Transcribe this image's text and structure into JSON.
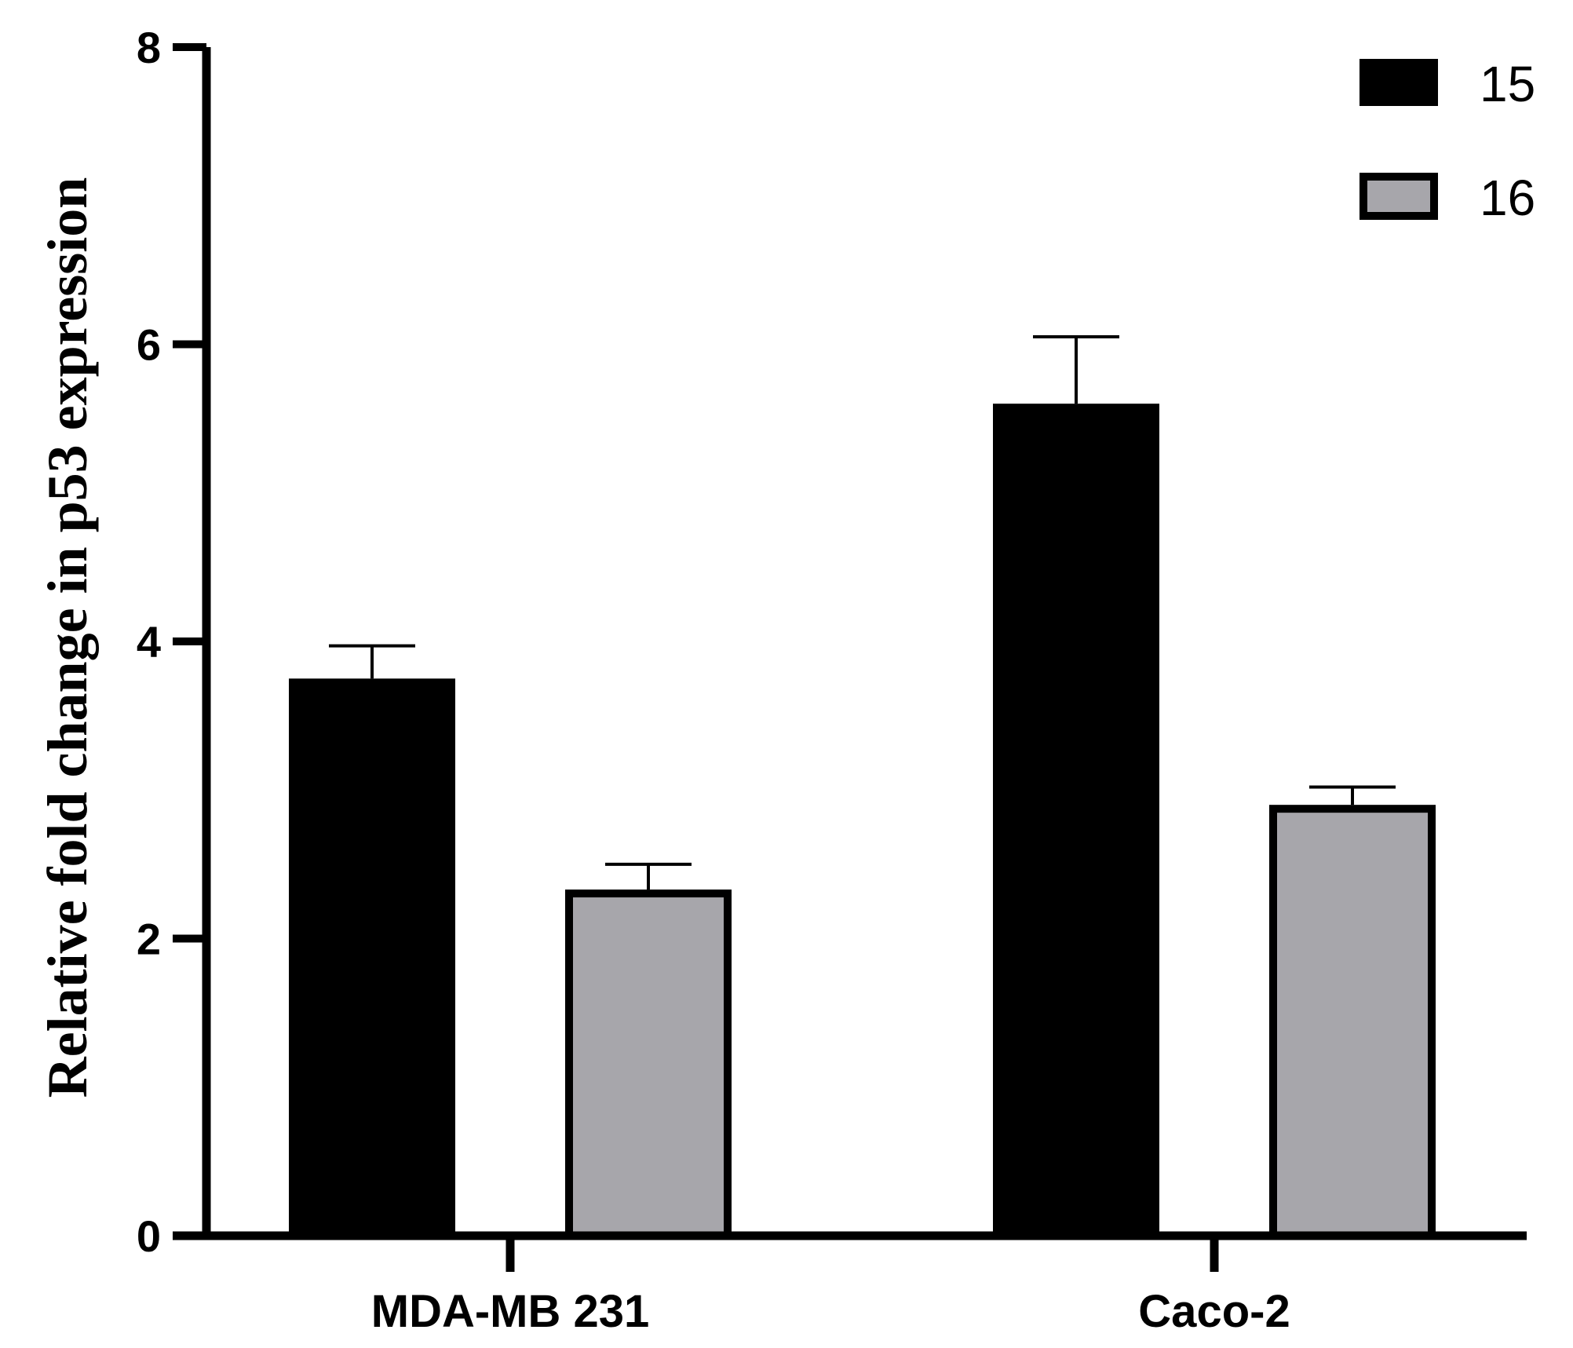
{
  "chart_data": {
    "type": "bar",
    "title": "",
    "xlabel": "",
    "ylabel": "Relative fold change in p53 expression",
    "ylim": [
      0,
      8
    ],
    "yticks": [
      0,
      2,
      4,
      6,
      8
    ],
    "categories": [
      "MDA-MB 231",
      "Caco-2"
    ],
    "series": [
      {
        "name": "15",
        "values": [
          3.75,
          5.6
        ],
        "errors": [
          0.22,
          0.45
        ],
        "color": "#000000"
      },
      {
        "name": "16",
        "values": [
          2.33,
          2.9
        ],
        "errors": [
          0.17,
          0.12
        ],
        "color": "#a7a6ab"
      }
    ],
    "legend": "top-right",
    "grid": false
  }
}
